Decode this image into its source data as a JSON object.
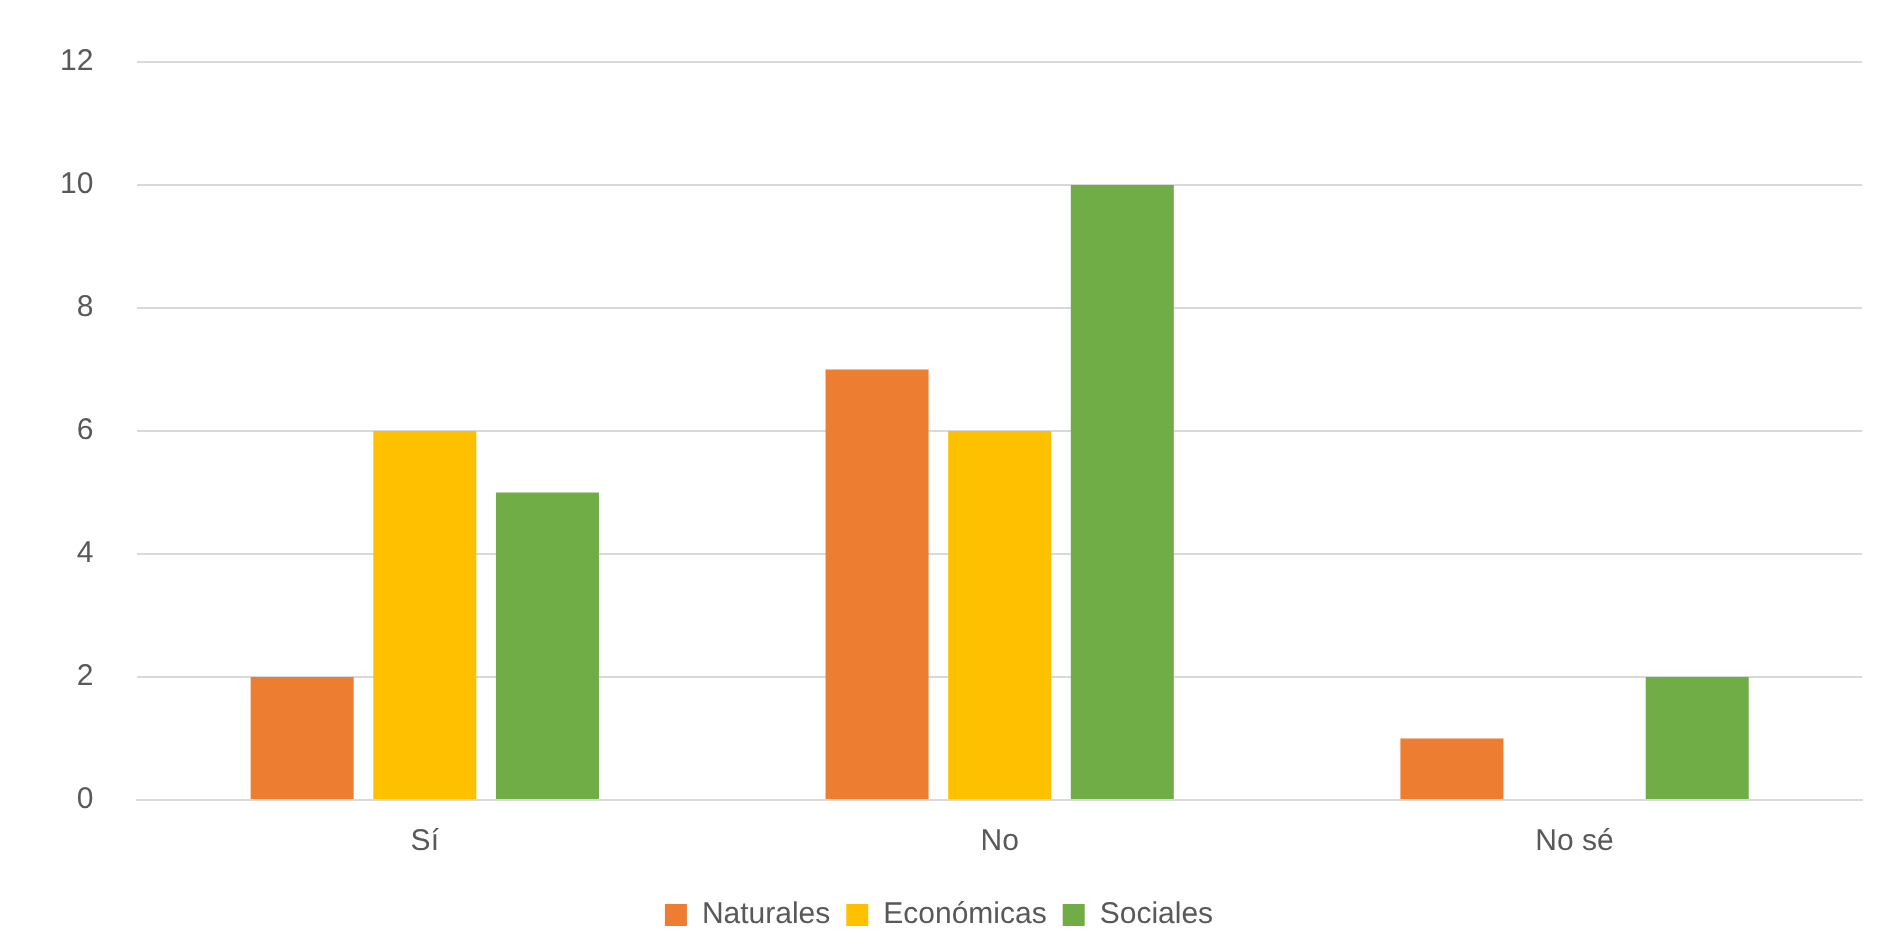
{
  "chart_data": {
    "type": "bar",
    "categories": [
      "Sí",
      "No",
      "No sé"
    ],
    "series": [
      {
        "name": "Naturales",
        "color": "#ed7d31",
        "values": [
          2,
          7,
          1
        ]
      },
      {
        "name": "Económicas",
        "color": "#ffc000",
        "values": [
          6,
          6,
          0
        ]
      },
      {
        "name": "Sociales",
        "color": "#70ad47",
        "values": [
          5,
          10,
          2
        ]
      }
    ],
    "ylim": [
      0,
      12
    ],
    "yticks": [
      0,
      2,
      4,
      6,
      8,
      10,
      12
    ],
    "grid": "y",
    "legend": "bottom"
  }
}
